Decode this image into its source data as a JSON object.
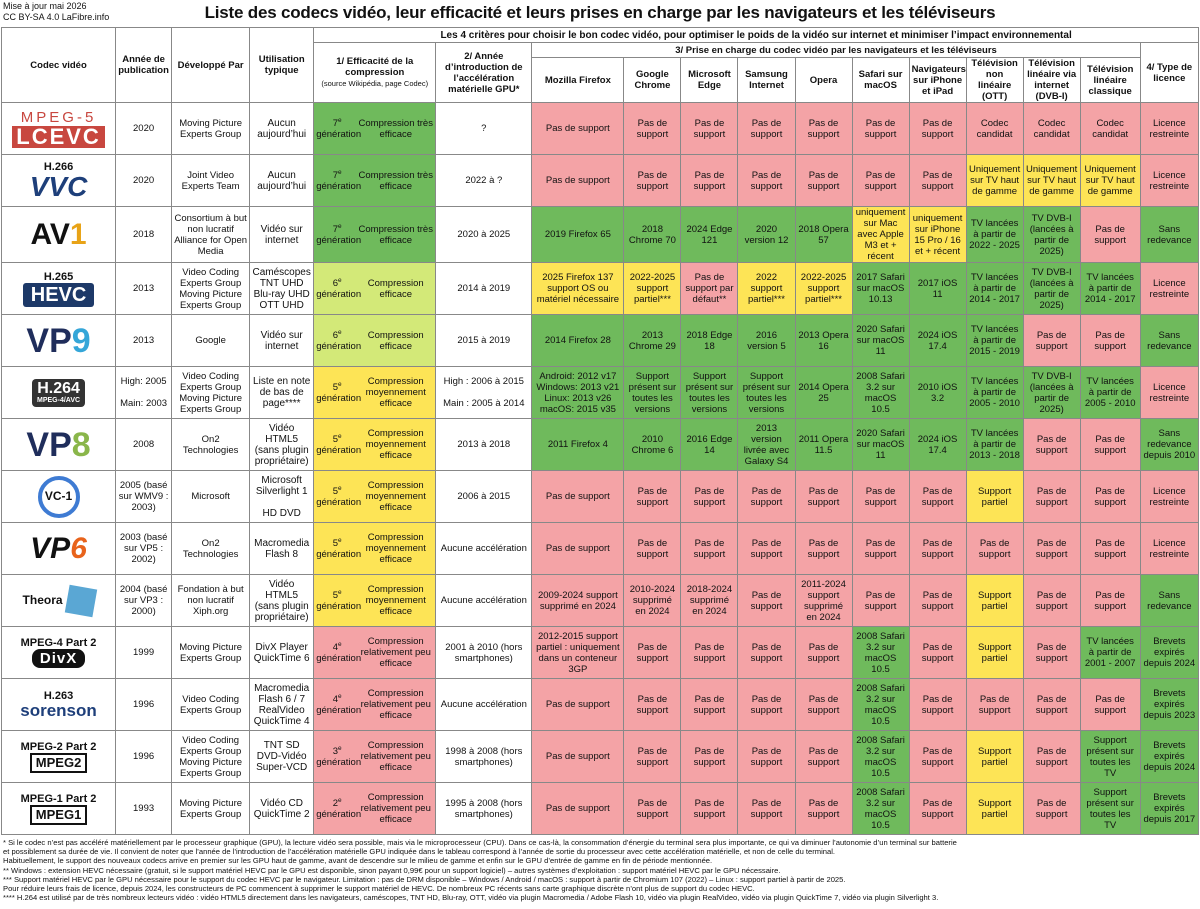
{
  "meta": {
    "updated": "Mise à jour mai 2026",
    "license": "CC BY-SA 4.0 LaFibre.info"
  },
  "title": "Liste des codecs vidéo, leur efficacité et leurs prises en charge par les navigateurs et les téléviseurs",
  "headers": {
    "criteria": "Les 4 critères pour choisir le bon codec vidéo, pour optimiser le poids de la vidéo sur internet et minimiser l’impact environnemental",
    "codec": "Codec vidéo",
    "year": "Année de publication",
    "dev": "Développé Par",
    "usage": "Utilisation typique",
    "eff": "1/ Efficacité de la compression",
    "eff_sub": "(source Wikipédia, page Codec)",
    "gpu": "2/ Année d’introduction de l’accélération matérielle GPU*",
    "support": "3/ Prise en charge du codec vidéo par les navigateurs et les téléviseurs",
    "license": "4/ Type de licence",
    "cols": [
      "Mozilla Firefox",
      "Google Chrome",
      "Microsoft Edge",
      "Samsung Internet",
      "Opera",
      "Safari sur macOS",
      "Navigateurs sur iPhone et iPad",
      "Télévision non linéaire (OTT)",
      "Télévision linéaire via internet (DVB-I)",
      "Télévision linéaire classique"
    ]
  },
  "rows": [
    {
      "logo": "lcevc",
      "logo_text": [
        "MPEG-5",
        "LCEVC"
      ],
      "year": "2020",
      "dev": "Moving Picture Experts Group",
      "usage": "Aucun aujourd’hui",
      "gen": "7",
      "eff": "Compression très efficace",
      "effc": "g",
      "gpu": "?",
      "gpuc": "w",
      "cells": [
        [
          "Pas de support",
          "r"
        ],
        [
          "Pas de support",
          "r"
        ],
        [
          "Pas de support",
          "r"
        ],
        [
          "Pas de support",
          "r"
        ],
        [
          "Pas de support",
          "r"
        ],
        [
          "Pas de support",
          "r"
        ],
        [
          "Pas de support",
          "r"
        ],
        [
          "Codec candidat",
          "r"
        ],
        [
          "Codec candidat",
          "r"
        ],
        [
          "Codec candidat",
          "r"
        ]
      ],
      "lic": "Licence restreinte",
      "licc": "r"
    },
    {
      "logo": "vvc",
      "logo_text": [
        "H.266",
        "VVC"
      ],
      "year": "2020",
      "dev": "Joint Video Experts Team",
      "usage": "Aucun aujourd’hui",
      "gen": "7",
      "eff": "Compression très efficace",
      "effc": "g",
      "gpu": "2022 à ?",
      "gpuc": "w",
      "cells": [
        [
          "Pas de support",
          "r"
        ],
        [
          "Pas de support",
          "r"
        ],
        [
          "Pas de support",
          "r"
        ],
        [
          "Pas de support",
          "r"
        ],
        [
          "Pas de support",
          "r"
        ],
        [
          "Pas de support",
          "r"
        ],
        [
          "Pas de support",
          "r"
        ],
        [
          "Uniquement sur TV haut de gamme",
          "y"
        ],
        [
          "Uniquement sur TV haut de gamme",
          "y"
        ],
        [
          "Uniquement sur TV haut de gamme",
          "y"
        ]
      ],
      "lic": "Licence restreinte",
      "licc": "r"
    },
    {
      "logo": "av1",
      "logo_text": [
        "AV",
        "1"
      ],
      "year": "2018",
      "dev": "Consortium à but non lucratif Alliance for Open Media",
      "usage": "Vidéo sur internet",
      "gen": "7",
      "eff": "Compression très efficace",
      "effc": "g",
      "gpu": "2020 à 2025",
      "gpuc": "w",
      "cells": [
        [
          "2019 Firefox 65",
          "g"
        ],
        [
          "2018 Chrome 70",
          "g"
        ],
        [
          "2024 Edge 121",
          "g"
        ],
        [
          "2020 version 12",
          "g"
        ],
        [
          "2018 Opera 57",
          "g"
        ],
        [
          "uniquement sur Mac avec Apple M3 et + récent",
          "y"
        ],
        [
          "uniquement sur iPhone 15 Pro / 16 et + récent",
          "y"
        ],
        [
          "TV lancées à partir de 2022 - 2025",
          "g"
        ],
        [
          "TV DVB-I (lancées à partir de 2025)",
          "g"
        ],
        [
          "Pas de support",
          "r"
        ]
      ],
      "lic": "Sans redevance",
      "licc": "g"
    },
    {
      "logo": "hevc",
      "logo_text": [
        "H.265",
        "HEVC"
      ],
      "year": "2013",
      "dev": "Video Coding Experts Group Moving Picture Experts Group",
      "usage": "Caméscopes TNT UHD Blu-ray UHD OTT UHD",
      "gen": "6",
      "eff": "Compression efficace",
      "effc": "lg",
      "gpu": "2014 à 2019",
      "gpuc": "w",
      "cells": [
        [
          "2025 Firefox 137 support OS ou matériel nécessaire",
          "y"
        ],
        [
          "2022-2025 support partiel***",
          "y"
        ],
        [
          "Pas de support par défaut**",
          "r"
        ],
        [
          "2022 support partiel***",
          "y"
        ],
        [
          "2022-2025 support partiel***",
          "y"
        ],
        [
          "2017 Safari sur macOS 10.13",
          "g"
        ],
        [
          "2017 iOS 11",
          "g"
        ],
        [
          "TV lancées à partir de 2014 - 2017",
          "g"
        ],
        [
          "TV DVB-I (lancées à partir de 2025)",
          "g"
        ],
        [
          "TV lancées à partir de 2014 - 2017",
          "g"
        ]
      ],
      "lic": "Licence restreinte",
      "licc": "r"
    },
    {
      "logo": "vp9",
      "logo_text": [
        "VP",
        "9"
      ],
      "year": "2013",
      "dev": "Google",
      "usage": "Vidéo sur internet",
      "gen": "6",
      "eff": "Compression efficace",
      "effc": "lg",
      "gpu": "2015 à 2019",
      "gpuc": "w",
      "cells": [
        [
          "2014 Firefox 28",
          "g"
        ],
        [
          "2013 Chrome 29",
          "g"
        ],
        [
          "2018 Edge 18",
          "g"
        ],
        [
          "2016 version 5",
          "g"
        ],
        [
          "2013 Opera 16",
          "g"
        ],
        [
          "2020 Safari sur macOS 11",
          "g"
        ],
        [
          "2024 iOS 17.4",
          "g"
        ],
        [
          "TV lancées à partir de 2015 - 2019",
          "g"
        ],
        [
          "Pas de support",
          "r"
        ],
        [
          "Pas de support",
          "r"
        ]
      ],
      "lic": "Sans redevance",
      "licc": "g"
    },
    {
      "logo": "h264",
      "logo_text": [
        "H.264",
        "MPEG-4/AVC"
      ],
      "year": "High: 2005\n\nMain: 2003",
      "dev": "Video Coding Experts Group Moving Picture Experts Group",
      "usage": "Liste en note de bas de page****",
      "gen": "5",
      "eff": "Compression moyennement efficace",
      "effc": "y",
      "gpu": "High : 2006 à 2015\n\nMain : 2005 à 2014",
      "gpuc": "w",
      "cells": [
        [
          "Android: 2012 v17 Windows: 2013 v21 Linux: 2013 v26 macOS: 2015 v35",
          "g"
        ],
        [
          "Support présent sur toutes les versions",
          "g"
        ],
        [
          "Support présent sur toutes les versions",
          "g"
        ],
        [
          "Support présent sur toutes les versions",
          "g"
        ],
        [
          "2014 Opera 25",
          "g"
        ],
        [
          "2008 Safari 3.2 sur macOS 10.5",
          "g"
        ],
        [
          "2010 iOS 3.2",
          "g"
        ],
        [
          "TV lancées à partir de 2005 - 2010",
          "g"
        ],
        [
          "TV DVB-I (lancées à partir de 2025)",
          "g"
        ],
        [
          "TV lancées à partir de 2005 - 2010",
          "g"
        ]
      ],
      "lic": "Licence restreinte",
      "licc": "r"
    },
    {
      "logo": "vp8",
      "logo_text": [
        "VP",
        "8"
      ],
      "year": "2008",
      "dev": "On2 Technologies",
      "usage": "Vidéo HTML5 (sans plugin propriétaire)",
      "gen": "5",
      "eff": "Compression moyennement efficace",
      "effc": "y",
      "gpu": "2013 à 2018",
      "gpuc": "w",
      "cells": [
        [
          "2011 Firefox 4",
          "g"
        ],
        [
          "2010 Chrome 6",
          "g"
        ],
        [
          "2016 Edge 14",
          "g"
        ],
        [
          "2013 version livrée avec Galaxy S4",
          "g"
        ],
        [
          "2011 Opera 11.5",
          "g"
        ],
        [
          "2020 Safari sur macOS 11",
          "g"
        ],
        [
          "2024 iOS 17.4",
          "g"
        ],
        [
          "TV lancées à partir de 2013 - 2018",
          "g"
        ],
        [
          "Pas de support",
          "r"
        ],
        [
          "Pas de support",
          "r"
        ]
      ],
      "lic": "Sans redevance depuis 2010",
      "licc": "g"
    },
    {
      "logo": "vc1",
      "logo_text": [
        "VC-1"
      ],
      "year": "2005 (basé sur WMV9 : 2003)",
      "dev": "Microsoft",
      "usage": "Microsoft Silverlight 1\n\nHD DVD",
      "gen": "5",
      "eff": "Compression moyennement efficace",
      "effc": "y",
      "gpu": "2006 à 2015",
      "gpuc": "w",
      "cells": [
        [
          "Pas de support",
          "r"
        ],
        [
          "Pas de support",
          "r"
        ],
        [
          "Pas de support",
          "r"
        ],
        [
          "Pas de support",
          "r"
        ],
        [
          "Pas de support",
          "r"
        ],
        [
          "Pas de support",
          "r"
        ],
        [
          "Pas de support",
          "r"
        ],
        [
          "Support partiel",
          "y"
        ],
        [
          "Pas de support",
          "r"
        ],
        [
          "Pas de support",
          "r"
        ]
      ],
      "lic": "Licence restreinte",
      "licc": "r"
    },
    {
      "logo": "vp6",
      "logo_text": [
        "VP",
        "6"
      ],
      "year": "2003 (basé sur VP5 : 2002)",
      "dev": "On2 Technologies",
      "usage": "Macromedia Flash 8",
      "gen": "5",
      "eff": "Compression moyennement efficace",
      "effc": "y",
      "gpu": "Aucune accélération",
      "gpuc": "w",
      "cells": [
        [
          "Pas de support",
          "r"
        ],
        [
          "Pas de support",
          "r"
        ],
        [
          "Pas de support",
          "r"
        ],
        [
          "Pas de support",
          "r"
        ],
        [
          "Pas de support",
          "r"
        ],
        [
          "Pas de support",
          "r"
        ],
        [
          "Pas de support",
          "r"
        ],
        [
          "Pas de support",
          "r"
        ],
        [
          "Pas de support",
          "r"
        ],
        [
          "Pas de support",
          "r"
        ]
      ],
      "lic": "Licence restreinte",
      "licc": "r"
    },
    {
      "logo": "theora",
      "logo_text": [
        "Theora"
      ],
      "year": "2004 (basé sur VP3 : 2000)",
      "dev": "Fondation à but non lucratif Xiph.org",
      "usage": "Vidéo HTML5 (sans plugin propriétaire)",
      "gen": "5",
      "eff": "Compression moyennement efficace",
      "effc": "y",
      "gpu": "Aucune accélération",
      "gpuc": "w",
      "cells": [
        [
          "2009-2024 support supprimé en 2024",
          "r"
        ],
        [
          "2010-2024 supprimé en 2024",
          "r"
        ],
        [
          "2018-2024 supprimé en 2024",
          "r"
        ],
        [
          "Pas de support",
          "r"
        ],
        [
          "2011-2024 support supprimé en 2024",
          "r"
        ],
        [
          "Pas de support",
          "r"
        ],
        [
          "Pas de support",
          "r"
        ],
        [
          "Support partiel",
          "y"
        ],
        [
          "Pas de support",
          "r"
        ],
        [
          "Pas de support",
          "r"
        ]
      ],
      "lic": "Sans redevance",
      "licc": "g"
    },
    {
      "logo": "divx",
      "logo_text": [
        "MPEG-4 Part 2",
        "DivX"
      ],
      "year": "1999",
      "dev": "Moving Picture Experts Group",
      "usage": "DivX Player QuickTime 6",
      "gen": "4",
      "eff": "Compression relativement peu efficace",
      "effc": "r",
      "gpu": "2001 à 2010 (hors smartphones)",
      "gpuc": "w",
      "cells": [
        [
          "2012-2015 support partiel : uniquement dans un conteneur 3GP",
          "r"
        ],
        [
          "Pas de support",
          "r"
        ],
        [
          "Pas de support",
          "r"
        ],
        [
          "Pas de support",
          "r"
        ],
        [
          "Pas de support",
          "r"
        ],
        [
          "2008 Safari 3.2 sur macOS 10.5",
          "g"
        ],
        [
          "Pas de support",
          "r"
        ],
        [
          "Support partiel",
          "y"
        ],
        [
          "Pas de support",
          "r"
        ],
        [
          "TV lancées à partir de 2001 - 2007",
          "g"
        ]
      ],
      "lic": "Brevets expirés depuis 2024",
      "licc": "g"
    },
    {
      "logo": "sorenson",
      "logo_text": [
        "H.263",
        "sorenson"
      ],
      "year": "1996",
      "dev": "Video Coding Experts Group",
      "usage": "Macromedia Flash 6 / 7 RealVideo QuickTime 4",
      "gen": "4",
      "eff": "Compression relativement peu efficace",
      "effc": "r",
      "gpu": "Aucune accélération",
      "gpuc": "w",
      "cells": [
        [
          "Pas de support",
          "r"
        ],
        [
          "Pas de support",
          "r"
        ],
        [
          "Pas de support",
          "r"
        ],
        [
          "Pas de support",
          "r"
        ],
        [
          "Pas de support",
          "r"
        ],
        [
          "2008 Safari 3.2 sur macOS 10.5",
          "g"
        ],
        [
          "Pas de support",
          "r"
        ],
        [
          "Pas de support",
          "r"
        ],
        [
          "Pas de support",
          "r"
        ],
        [
          "Pas de support",
          "r"
        ]
      ],
      "lic": "Brevets expirés depuis 2023",
      "licc": "g"
    },
    {
      "logo": "mpeg2",
      "logo_text": [
        "MPEG-2 Part 2",
        "MPEG2"
      ],
      "year": "1996",
      "dev": "Video Coding Experts Group Moving Picture Experts Group",
      "usage": "TNT SD DVD-Vidéo Super-VCD",
      "gen": "3",
      "eff": "Compression relativement peu efficace",
      "effc": "r",
      "gpu": "1998 à 2008 (hors smartphones)",
      "gpuc": "w",
      "cells": [
        [
          "Pas de support",
          "r"
        ],
        [
          "Pas de support",
          "r"
        ],
        [
          "Pas de support",
          "r"
        ],
        [
          "Pas de support",
          "r"
        ],
        [
          "Pas de support",
          "r"
        ],
        [
          "2008 Safari 3.2 sur macOS 10.5",
          "g"
        ],
        [
          "Pas de support",
          "r"
        ],
        [
          "Support partiel",
          "y"
        ],
        [
          "Pas de support",
          "r"
        ],
        [
          "Support présent sur toutes les TV",
          "g"
        ]
      ],
      "lic": "Brevets expirés depuis 2024",
      "licc": "g"
    },
    {
      "logo": "mpeg1",
      "logo_text": [
        "MPEG-1 Part 2",
        "MPEG1"
      ],
      "year": "1993",
      "dev": "Moving Picture Experts Group",
      "usage": "Vidéo CD QuickTime 2",
      "gen": "2",
      "eff": "Compression relativement peu efficace",
      "effc": "r",
      "gpu": "1995 à 2008 (hors smartphones)",
      "gpuc": "w",
      "cells": [
        [
          "Pas de support",
          "r"
        ],
        [
          "Pas de support",
          "r"
        ],
        [
          "Pas de support",
          "r"
        ],
        [
          "Pas de support",
          "r"
        ],
        [
          "Pas de support",
          "r"
        ],
        [
          "2008 Safari 3.2 sur macOS 10.5",
          "g"
        ],
        [
          "Pas de support",
          "r"
        ],
        [
          "Support partiel",
          "y"
        ],
        [
          "Pas de support",
          "r"
        ],
        [
          "Support présent sur toutes les TV",
          "g"
        ]
      ],
      "lic": "Brevets expirés depuis 2017",
      "licc": "g"
    }
  ],
  "gen_suffix": "e",
  "gen_word": "génération",
  "notes": [
    "* Si le codec n’est pas accéléré matériellement par le processeur graphique (GPU), la lecture vidéo sera possible, mais via le microprocesseur (CPU). Dans ce cas-là, la consommation d’énergie du terminal sera plus importante, ce qui va diminuer l’autonomie d’un terminal sur batterie",
    "et possiblement sa durée de vie. Il convient de noter que l’année de l’introduction de l’accélération matérielle GPU indiquée dans le tableau correspond à l’année de sortie du processeur avec cette accélération matérielle, et non de celle du terminal.",
    "Habituellement, le support des nouveaux codecs arrive en premier sur les GPU haut de gamme, avant de descendre sur le milieu de gamme et enfin sur le GPU d’entrée de gamme en fin de période mentionnée.",
    "** Windows : extension HEVC nécessaire (gratuit, si le support matériel HEVC par le GPU est disponible, sinon payant 0,99€ pour un support logiciel) –  autres systèmes d’exploitation : support matériel HEVC par le GPU nécessaire.",
    "*** Support matériel HEVC par le GPU nécessaire pour le support du codec HEVC par le navigateur. Limitation : pas de DRM disponible  –  Windows / Android / macOS : support à partir de Chromium 107 (2022)  –  Linux : support partiel à partir de 2025.",
    "Pour réduire leurs frais de licence, depuis 2024, les constructeurs de PC commencent à supprimer le support matériel de HEVC. De nombreux PC récents sans carte graphique discrète n’ont plus de support du codec HEVC.",
    "**** H.264 est utilisé par de très nombreux lecteurs vidéo : vidéo HTML5 directement dans les navigateurs, caméscopes, TNT HD, Blu-ray, OTT, vidéo via plugin Macromedia / Adobe Flash 10, vidéo via plugin RealVideo, vidéo via plugin QuickTime 7, vidéo via plugin Silverlight 3."
  ]
}
